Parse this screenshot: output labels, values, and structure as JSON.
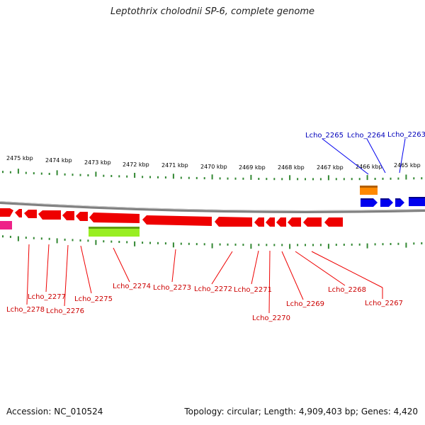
{
  "title": "Leptothrix cholodnii SP-6, complete genome",
  "footer": {
    "accession": "Accession: NC_010524",
    "stats": "Topology: circular; Length: 4,909,403 bp; Genes: 4,420"
  },
  "scale_labels": [
    "2475 kbp",
    "2474 kbp",
    "2473 kbp",
    "2472 kbp",
    "2471 kbp",
    "2470 kbp",
    "2469 kbp",
    "2468 kbp",
    "2467 kbp",
    "2466 kbp",
    "2465 kbp"
  ],
  "forward_gene_labels": [
    "Lcho_2265",
    "Lcho_2264",
    "Lcho_2263"
  ],
  "reverse_gene_labels": [
    "Lcho_2278",
    "Lcho_2277",
    "Lcho_2276",
    "Lcho_2275",
    "Lcho_2274",
    "Lcho_2273",
    "Lcho_2272",
    "Lcho_2271",
    "Lcho_2270",
    "Lcho_2269",
    "Lcho_2268",
    "Lcho_2267"
  ],
  "colors": {
    "forward_gene": "#0000ee",
    "reverse_gene": "#ee0000",
    "rna_feature": "#ff8800",
    "misc_feature_green": "#99ee22",
    "misc_feature_pink": "#ee2288",
    "backbone": "#808080",
    "tick": "#338833",
    "forward_label": "#0000bb",
    "reverse_label": "#cc0000"
  }
}
